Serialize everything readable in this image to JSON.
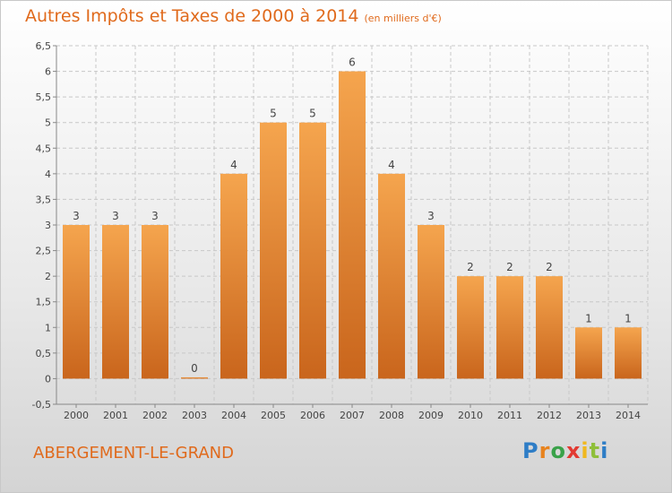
{
  "header": {
    "title": "Autres Impôts et Taxes de 2000 à 2014",
    "unit": "(en milliers d'€)"
  },
  "footer": {
    "commune": "ABERGEMENT-LE-GRAND",
    "brand": "Proxiti"
  },
  "colors": {
    "title": "#e06a1c",
    "bar_light": "#f5a54e",
    "bar_dark": "#c9651c",
    "grid": "#c8c8c8"
  },
  "chart_data": {
    "type": "bar",
    "title": "Autres Impôts et Taxes de 2000 à 2014",
    "subtitle": "(en milliers d'€)",
    "xlabel": "",
    "ylabel": "",
    "categories": [
      "2000",
      "2001",
      "2002",
      "2003",
      "2004",
      "2005",
      "2006",
      "2007",
      "2008",
      "2009",
      "2010",
      "2011",
      "2012",
      "2013",
      "2014"
    ],
    "values": [
      3,
      3,
      3,
      0,
      4,
      5,
      5,
      6,
      4,
      3,
      2,
      2,
      2,
      1,
      1
    ],
    "value_labels": [
      "3",
      "3",
      "3",
      "0",
      "4",
      "5",
      "5",
      "6",
      "4",
      "3",
      "2",
      "2",
      "2",
      "1",
      "1"
    ],
    "ylim": [
      -0.5,
      6.5
    ],
    "yticks": [
      -0.5,
      0,
      0.5,
      1,
      1.5,
      2,
      2.5,
      3,
      3.5,
      4,
      4.5,
      5,
      5.5,
      6,
      6.5
    ],
    "ytick_labels": [
      "-0,5",
      "0",
      "0,5",
      "1",
      "1,5",
      "2",
      "2,5",
      "3",
      "3,5",
      "4",
      "4,5",
      "5",
      "5,5",
      "6",
      "6,5"
    ],
    "grid": true,
    "legend": "none"
  }
}
